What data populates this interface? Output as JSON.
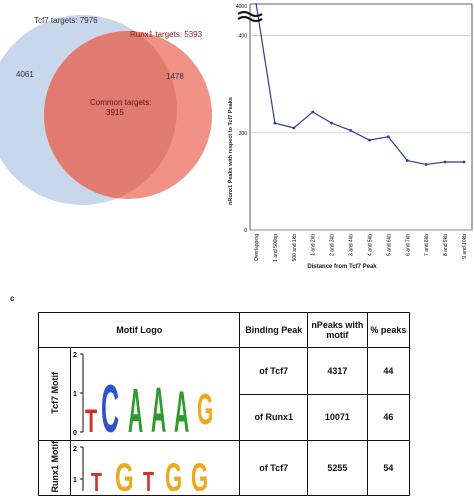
{
  "venn": {
    "tcf7_label": "Tcf7 targets: 7976",
    "runx1_label": "Runx1 targets: 5393",
    "tcf7_only": "4061",
    "runx1_only": "1478",
    "common_label": "Common targets:",
    "common_value": "3915",
    "colors": {
      "tcf7": "#c9d7ec",
      "runx1": "#f08c80",
      "overlap": "#e27b6f"
    }
  },
  "chart_data": {
    "type": "line",
    "ylabel": "nRunx1 Peaks with respect to Tcf7 Peaks",
    "xlabel": "Distance from Tcf7 Peak",
    "y_ticks": [
      "0",
      "200",
      "400",
      "4000"
    ],
    "categories": [
      "Overlapping",
      "1 and 500bp",
      "500 and 1kb",
      "1 and 2kb",
      "2 and 3kb",
      "3 and 4kb",
      "4 and 5kb",
      "5 and 6kb",
      "6 and 7kb",
      "7 and 8kb",
      "8 and 9kb",
      "9 and 10kb"
    ],
    "values": [
      3915,
      220,
      210,
      243,
      220,
      205,
      185,
      192,
      143,
      135,
      140,
      140
    ],
    "ylim": [
      0,
      4000
    ],
    "axis_break": true,
    "color": "#2f3f8f"
  },
  "panel_c": {
    "label": "c",
    "headers": {
      "logo": "Motif Logo",
      "binding": "Binding Peak",
      "npeaks": "nPeaks with motif",
      "pct": "% peaks"
    },
    "rows": [
      {
        "motif": "Tcf7 Motif",
        "binding": "of Tcf7",
        "npeaks": "4317",
        "pct": "44"
      },
      {
        "motif": "Tcf7 Motif",
        "binding": "of Runx1",
        "npeaks": "10071",
        "pct": "46"
      },
      {
        "motif": "Runx1 Motif",
        "binding": "of Tcf7",
        "npeaks": "5255",
        "pct": "54"
      }
    ],
    "logo1_axis": [
      "2",
      "1",
      "0"
    ],
    "logo1_letters": "TCAAAG",
    "logo2_axis": [
      "2",
      "1"
    ],
    "logo2_letters": "TGTGG"
  }
}
